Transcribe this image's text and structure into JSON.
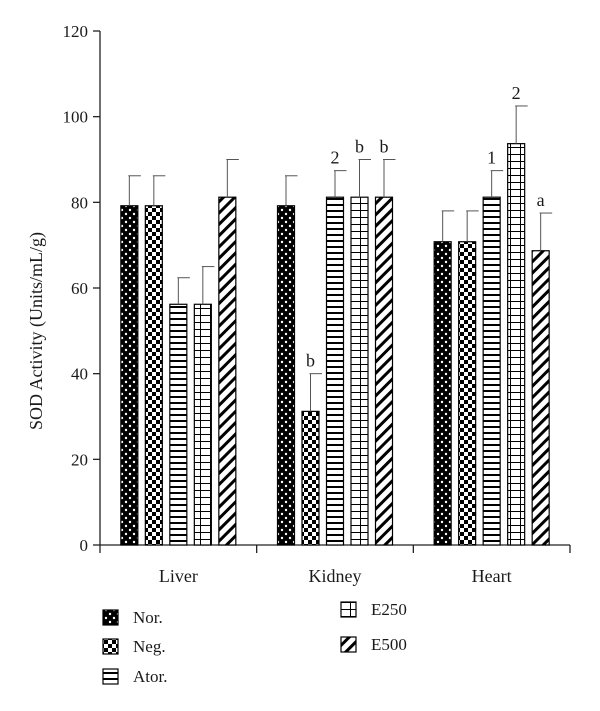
{
  "chart_data": {
    "type": "bar",
    "title": "",
    "xlabel": "",
    "ylabel": "SOD Activity (Units/mL/g)",
    "ylim": [
      0,
      120
    ],
    "yticks": [
      0,
      20,
      40,
      60,
      80,
      100,
      120
    ],
    "grid": false,
    "legend_position": "bottom",
    "categories": [
      "Liver",
      "Kidney",
      "Heart"
    ],
    "series": [
      {
        "name": "Nor.",
        "pattern": "dots",
        "values": [
          79.2,
          79.2,
          70.8
        ],
        "errors": [
          7,
          7,
          7.2
        ],
        "annotations": [
          "",
          "",
          ""
        ]
      },
      {
        "name": "Neg.",
        "pattern": "checker",
        "values": [
          79.2,
          31.2,
          70.8
        ],
        "errors": [
          7,
          8.8,
          7.2
        ],
        "annotations": [
          "",
          "b",
          ""
        ]
      },
      {
        "name": "Ator.",
        "pattern": "hlines",
        "values": [
          56.2,
          81.2,
          81.2
        ],
        "errors": [
          6.2,
          6.2,
          6.2
        ],
        "annotations": [
          "",
          "2",
          "1"
        ]
      },
      {
        "name": "E250",
        "pattern": "bricks",
        "values": [
          56.2,
          81.2,
          93.7
        ],
        "errors": [
          8.8,
          8.8,
          8.8
        ],
        "annotations": [
          "",
          "b",
          "2"
        ]
      },
      {
        "name": "E500",
        "pattern": "diagonal",
        "values": [
          81.2,
          81.2,
          68.7
        ],
        "errors": [
          8.8,
          8.8,
          8.8
        ],
        "annotations": [
          "",
          "b",
          "a"
        ]
      }
    ]
  }
}
